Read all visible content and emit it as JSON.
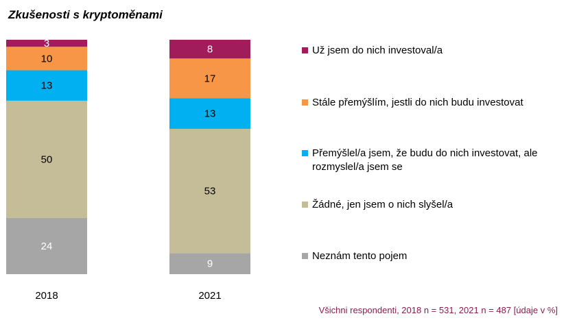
{
  "title": "Zkušenosti s kryptoměnami",
  "footnote": "Všichni respondenti, 2018 n = 531, 2021 n = 487 [údaje v %]",
  "chart_data": {
    "type": "bar",
    "stacked": true,
    "orientation": "vertical",
    "categories": [
      "2018",
      "2021"
    ],
    "ylim": [
      0,
      100
    ],
    "grid": false,
    "legend_position": "right",
    "series": [
      {
        "name": "Neznám tento pojem",
        "color": "#a6a6a6",
        "values": [
          24,
          9
        ]
      },
      {
        "name": "Žádné, jen jsem o nich slyšel/a",
        "color": "#c4bd97",
        "values": [
          50,
          53
        ]
      },
      {
        "name": "Přemýšlel/a jsem, že budu do nich investovat, ale rozmyslel/a jsem se",
        "color": "#00b0f0",
        "values": [
          13,
          13
        ]
      },
      {
        "name": "Stále přemýšlím, jestli do nich budu investovat",
        "color": "#f79646",
        "values": [
          10,
          17
        ]
      },
      {
        "name": "Už jsem do nich investoval/a",
        "color": "#a01c5a",
        "values": [
          3,
          8
        ]
      }
    ]
  },
  "legend": [
    {
      "label": "Už jsem do nich investoval/a",
      "color": "#a01c5a"
    },
    {
      "label": "Stále přemýšlím, jestli do nich budu investovat",
      "color": "#f79646"
    },
    {
      "label": "Přemýšlel/a jsem, že budu do nich investovat, ale rozmyslel/a jsem se",
      "color": "#00b0f0"
    },
    {
      "label": "Žádné, jen jsem o nich slyšel/a",
      "color": "#c4bd97"
    },
    {
      "label": "Neznám tento pojem",
      "color": "#a6a6a6"
    }
  ]
}
